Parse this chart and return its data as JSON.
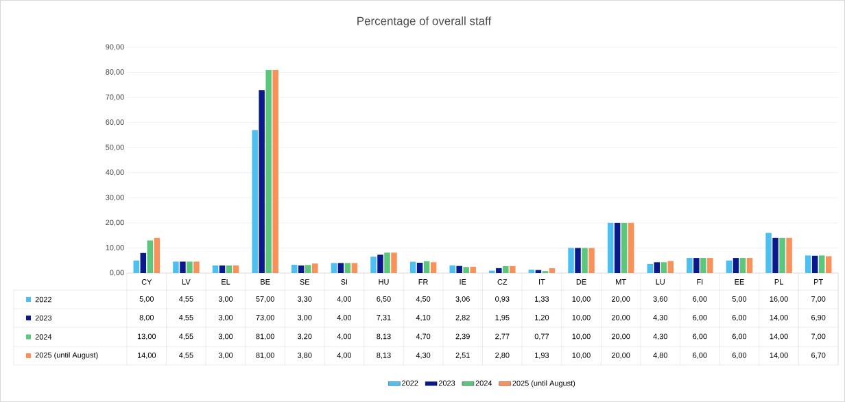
{
  "chart_data": {
    "type": "bar",
    "title": "Percentage of overall staff",
    "categories": [
      "CY",
      "LV",
      "EL",
      "BE",
      "SE",
      "SI",
      "HU",
      "FR",
      "IE",
      "CZ",
      "IT",
      "DE",
      "MT",
      "LU",
      "FI",
      "EE",
      "PL",
      "PT"
    ],
    "series": [
      {
        "name": "2022",
        "color": "#4dbff0",
        "values": [
          5.0,
          4.55,
          3.0,
          57.0,
          3.3,
          4.0,
          6.5,
          4.5,
          3.06,
          0.93,
          1.33,
          10.0,
          20.0,
          3.6,
          6.0,
          5.0,
          16.0,
          7.0
        ],
        "value_labels": [
          "5,00",
          "4,55",
          "3,00",
          "57,00",
          "3,30",
          "4,00",
          "6,50",
          "4,50",
          "3,06",
          "0,93",
          "1,33",
          "10,00",
          "20,00",
          "3,60",
          "6,00",
          "5,00",
          "16,00",
          "7,00"
        ]
      },
      {
        "name": "2023",
        "color": "#0a1a8c",
        "values": [
          8.0,
          4.55,
          3.0,
          73.0,
          3.0,
          4.0,
          7.31,
          4.1,
          2.82,
          1.95,
          1.2,
          10.0,
          20.0,
          4.3,
          6.0,
          6.0,
          14.0,
          6.9
        ],
        "value_labels": [
          "8,00",
          "4,55",
          "3,00",
          "73,00",
          "3,00",
          "4,00",
          "7,31",
          "4,10",
          "2,82",
          "1,95",
          "1,20",
          "10,00",
          "20,00",
          "4,30",
          "6,00",
          "6,00",
          "14,00",
          "6,90"
        ]
      },
      {
        "name": "2024",
        "color": "#5cc67c",
        "values": [
          13.0,
          4.55,
          3.0,
          81.0,
          3.2,
          4.0,
          8.13,
          4.7,
          2.39,
          2.77,
          0.77,
          10.0,
          20.0,
          4.3,
          6.0,
          6.0,
          14.0,
          7.0
        ],
        "value_labels": [
          "13,00",
          "4,55",
          "3,00",
          "81,00",
          "3,20",
          "4,00",
          "8,13",
          "4,70",
          "2,39",
          "2,77",
          "0,77",
          "10,00",
          "20,00",
          "4,30",
          "6,00",
          "6,00",
          "14,00",
          "7,00"
        ]
      },
      {
        "name": "2025 (until August)",
        "color": "#f8925a",
        "values": [
          14.0,
          4.55,
          3.0,
          81.0,
          3.8,
          4.0,
          8.13,
          4.3,
          2.51,
          2.8,
          1.93,
          10.0,
          20.0,
          4.8,
          6.0,
          6.0,
          14.0,
          6.7
        ],
        "value_labels": [
          "14,00",
          "4,55",
          "3,00",
          "81,00",
          "3,80",
          "4,00",
          "8,13",
          "4,30",
          "2,51",
          "2,80",
          "1,93",
          "10,00",
          "20,00",
          "4,80",
          "6,00",
          "6,00",
          "14,00",
          "6,70"
        ]
      }
    ],
    "ylim": [
      0,
      90
    ],
    "yticks": [
      {
        "value": 0,
        "label": "0,00"
      },
      {
        "value": 10,
        "label": "10,00"
      },
      {
        "value": 20,
        "label": "20,00"
      },
      {
        "value": 30,
        "label": "30,00"
      },
      {
        "value": 40,
        "label": "40,00"
      },
      {
        "value": 50,
        "label": "50,00"
      },
      {
        "value": 60,
        "label": "60,00"
      },
      {
        "value": 70,
        "label": "70,00"
      },
      {
        "value": 80,
        "label": "80,00"
      },
      {
        "value": 90,
        "label": "90,00"
      }
    ],
    "grid": "y",
    "legend": "bottom"
  }
}
